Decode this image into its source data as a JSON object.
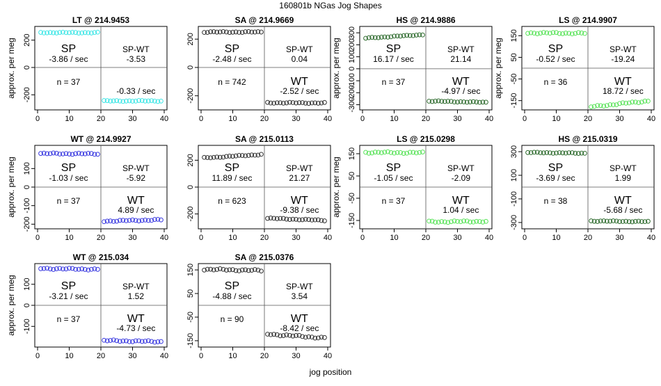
{
  "figure": {
    "title": "160801b   NGas Jog Shapes",
    "xlabel": "jog position"
  },
  "chart_data": [
    {
      "type": "scatter",
      "title": "LT @ 214.9453",
      "ylabel": "approx. per meg",
      "color": "#3ee6e6",
      "xlim": [
        0,
        40
      ],
      "ylim": [
        -290,
        280
      ],
      "yticks": [
        -200,
        0,
        200
      ],
      "xticks": [
        0,
        10,
        20,
        30,
        40
      ],
      "sp_level": 255,
      "sp_slope": -0.05,
      "wt_level": -245,
      "wt_slope": 0.0,
      "labels": {
        "sp": "SP",
        "sp_rate": "-3.86 / sec",
        "spwt": "SP-WT",
        "spwt_val": "-3.53",
        "n": "n = 37",
        "wt": "",
        "wt_rate": "-0.33 / sec"
      }
    },
    {
      "type": "scatter",
      "title": "SA @ 214.9669",
      "ylabel": "",
      "color": "#333333",
      "xlim": [
        0,
        40
      ],
      "ylim": [
        -280,
        270
      ],
      "yticks": [
        -200,
        0,
        200
      ],
      "xticks": [
        0,
        10,
        20,
        30,
        40
      ],
      "sp_level": 250,
      "sp_slope": 0.0,
      "wt_level": -250,
      "wt_slope": -0.1,
      "labels": {
        "sp": "SP",
        "sp_rate": "-2.48 / sec",
        "spwt": "SP-WT",
        "spwt_val": "0.04",
        "n": "n = 742",
        "wt": "WT",
        "wt_rate": "-2.52 / sec"
      }
    },
    {
      "type": "scatter",
      "title": "HS @ 214.9886",
      "ylabel": "approx. per meg",
      "color": "#2e6b2e",
      "xlim": [
        0,
        40
      ],
      "ylim": [
        -320,
        330
      ],
      "yticks": [
        -300,
        -200,
        -100,
        0,
        100,
        200,
        300
      ],
      "xticks": [
        0,
        10,
        20,
        30,
        40
      ],
      "sp_level": 270,
      "sp_slope": 1.6,
      "wt_level": -275,
      "wt_slope": -0.6,
      "labels": {
        "sp": "SP",
        "sp_rate": "16.17 / sec",
        "spwt": "SP-WT",
        "spwt_val": "21.14",
        "n": "n = 37",
        "wt": "WT",
        "wt_rate": "-4.97 / sec"
      }
    },
    {
      "type": "scatter",
      "title": "LS @ 214.9907",
      "ylabel": "approx. per meg",
      "color": "#5ae35a",
      "xlim": [
        0,
        40
      ],
      "ylim": [
        -180,
        180
      ],
      "yticks": [
        -150,
        -50,
        50,
        150
      ],
      "xticks": [
        0,
        10,
        20,
        30,
        40
      ],
      "sp_level": 162,
      "sp_slope": -0.1,
      "wt_level": -165,
      "wt_slope": 1.5,
      "labels": {
        "sp": "SP",
        "sp_rate": "-0.52 / sec",
        "spwt": "SP-WT",
        "spwt_val": "-19.24",
        "n": "n = 36",
        "wt": "WT",
        "wt_rate": "18.72 / sec"
      }
    },
    {
      "type": "scatter",
      "title": "WT @ 214.9927",
      "ylabel": "approx. per meg",
      "color": "#3a3ae0",
      "xlim": [
        0,
        40
      ],
      "ylim": [
        -210,
        210
      ],
      "yticks": [
        -200,
        -100,
        0,
        100
      ],
      "xticks": [
        0,
        10,
        20,
        30,
        40
      ],
      "sp_level": 180,
      "sp_slope": -0.1,
      "wt_level": -180,
      "wt_slope": 0.4,
      "labels": {
        "sp": "SP",
        "sp_rate": "-1.03 / sec",
        "spwt": "SP-WT",
        "spwt_val": "-5.92",
        "n": "n = 37",
        "wt": "WT",
        "wt_rate": "4.89 / sec"
      }
    },
    {
      "type": "scatter",
      "title": "SA @ 215.0113",
      "ylabel": "",
      "color": "#333333",
      "xlim": [
        0,
        40
      ],
      "ylim": [
        -290,
        290
      ],
      "yticks": [
        -200,
        0,
        200
      ],
      "xticks": [
        0,
        10,
        20,
        30,
        40
      ],
      "sp_level": 230,
      "sp_slope": 1.4,
      "wt_level": -240,
      "wt_slope": -0.9,
      "labels": {
        "sp": "SP",
        "sp_rate": "11.89 / sec",
        "spwt": "SP-WT",
        "spwt_val": "21.27",
        "n": "n = 623",
        "wt": "WT",
        "wt_rate": "-9.38 / sec"
      }
    },
    {
      "type": "scatter",
      "title": "LS @ 215.0298",
      "ylabel": "approx. per meg",
      "color": "#5ae35a",
      "xlim": [
        0,
        40
      ],
      "ylim": [
        -175,
        175
      ],
      "yticks": [
        -150,
        -50,
        50,
        150
      ],
      "xticks": [
        0,
        10,
        20,
        30,
        40
      ],
      "sp_level": 155,
      "sp_slope": -0.1,
      "wt_level": -155,
      "wt_slope": 0.1,
      "labels": {
        "sp": "SP",
        "sp_rate": "-1.05 / sec",
        "spwt": "SP-WT",
        "spwt_val": "-2.09",
        "n": "n = 37",
        "wt": "WT",
        "wt_rate": "1.04 / sec"
      }
    },
    {
      "type": "scatter",
      "title": "HS @ 215.0319",
      "ylabel": "",
      "color": "#2e6b2e",
      "xlim": [
        0,
        40
      ],
      "ylim": [
        -330,
        330
      ],
      "yticks": [
        -300,
        -100,
        100,
        300
      ],
      "xticks": [
        0,
        10,
        20,
        30,
        40
      ],
      "sp_level": 290,
      "sp_slope": -0.35,
      "wt_level": -290,
      "wt_slope": -0.3,
      "labels": {
        "sp": "SP",
        "sp_rate": "-3.69 / sec",
        "spwt": "SP-WT",
        "spwt_val": "1.99",
        "n": "n = 38",
        "wt": "WT",
        "wt_rate": "-5.68 / sec"
      }
    },
    {
      "type": "scatter",
      "title": "WT @ 215.034",
      "ylabel": "approx. per meg",
      "color": "#3a3ae0",
      "xlim": [
        0,
        40
      ],
      "ylim": [
        -185,
        185
      ],
      "yticks": [
        -100,
        0,
        100
      ],
      "xticks": [
        0,
        10,
        20,
        30,
        40
      ],
      "sp_level": 173,
      "sp_slope": -0.25,
      "wt_level": -170,
      "wt_slope": -0.3,
      "labels": {
        "sp": "SP",
        "sp_rate": "-3.21 / sec",
        "spwt": "SP-WT",
        "spwt_val": "1.52",
        "n": "n = 37",
        "wt": "WT",
        "wt_rate": "-4.73 / sec"
      }
    },
    {
      "type": "scatter",
      "title": "SA @ 215.0376",
      "ylabel": "",
      "color": "#333333",
      "xlim": [
        0,
        40
      ],
      "ylim": [
        -165,
        165
      ],
      "yticks": [
        -150,
        -50,
        50,
        150
      ],
      "xticks": [
        0,
        10,
        20,
        30,
        40
      ],
      "sp_level": 150,
      "sp_slope": -0.3,
      "wt_level": -130,
      "wt_slope": -0.9,
      "labels": {
        "sp": "SP",
        "sp_rate": "-4.88 / sec",
        "spwt": "SP-WT",
        "spwt_val": "3.54",
        "n": "n = 90",
        "wt": "WT",
        "wt_rate": "-8.42 / sec"
      }
    }
  ]
}
